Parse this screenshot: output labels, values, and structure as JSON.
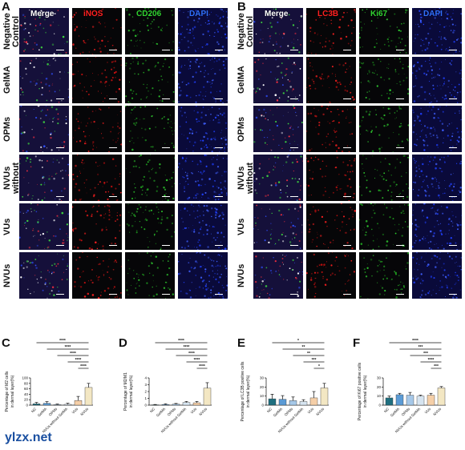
{
  "figure": {
    "panel_letters": [
      "A",
      "B",
      "C",
      "D",
      "E",
      "F"
    ],
    "panel_A": {
      "columns": [
        "Merge",
        "iNOS",
        "CD206",
        "DAPI"
      ],
      "column_colors": [
        "#ffffff",
        "#ff2020",
        "#30d030",
        "#3070ff"
      ],
      "rows": [
        "Negative Control",
        "GelMA",
        "OPMs",
        "NVUs without GelMA",
        "VUs",
        "NVUs"
      ]
    },
    "panel_B": {
      "columns": [
        "Merge",
        "LC3B",
        "Ki67",
        "DAPI"
      ],
      "column_colors": [
        "#ffffff",
        "#ff2020",
        "#30d030",
        "#3070ff"
      ],
      "rows": [
        "Negative Control",
        "GelMA",
        "OPMs",
        "NVUs without GelMA",
        "VUs",
        "NVUs"
      ]
    },
    "watermark": "ylzx.net"
  },
  "chart_data": [
    {
      "panel": "C",
      "type": "bar",
      "ylabel": "Percentage of M2 cells in dermal layer(%)",
      "categories": [
        "NC",
        "GelMA",
        "OPMs",
        "NVUs without GelMA",
        "VUs",
        "NVUs"
      ],
      "values": [
        5,
        7,
        2,
        3,
        17,
        65
      ],
      "errors": [
        5,
        6,
        2,
        4,
        15,
        15
      ],
      "ylim": [
        0,
        100
      ],
      "yticks": [
        0,
        20,
        40,
        60,
        80,
        100
      ],
      "colors": [
        "#1f6f7f",
        "#5b9bd5",
        "#a6c8e8",
        "#d6e4f0",
        "#f5cfa8",
        "#f3e7c3"
      ],
      "significance": [
        "****",
        "****",
        "****",
        "****",
        "****"
      ]
    },
    {
      "panel": "D",
      "type": "bar",
      "ylabel": "Percentage of M2/M1 in dermal layer(%)",
      "categories": [
        "NC",
        "GelMA",
        "OPMs",
        "NVUs without GelMA",
        "VUs",
        "NVUs"
      ],
      "values": [
        0.05,
        0.1,
        0.15,
        0.4,
        0.35,
        2.5
      ],
      "errors": [
        0.05,
        0.1,
        0.1,
        0.15,
        0.2,
        0.8
      ],
      "ylim": [
        0,
        4
      ],
      "yticks": [
        0,
        1,
        2,
        3,
        4
      ],
      "colors": [
        "#1f6f7f",
        "#5b9bd5",
        "#a6c8e8",
        "#d6e4f0",
        "#f5cfa8",
        "#f3e7c3"
      ],
      "significance": [
        "****",
        "****",
        "****",
        "****",
        "****"
      ]
    },
    {
      "panel": "E",
      "type": "bar",
      "ylabel": "Percentage of LC3B positive cells in dermal layer(%)",
      "categories": [
        "NC",
        "GelMA",
        "OPMs",
        "NVUs without GelMA",
        "VUs",
        "NVUs"
      ],
      "values": [
        7,
        6.5,
        5,
        4,
        8,
        19
      ],
      "errors": [
        5,
        4,
        4,
        2,
        7,
        5
      ],
      "ylim": [
        0,
        30
      ],
      "yticks": [
        0,
        10,
        20,
        30
      ],
      "colors": [
        "#1f6f7f",
        "#5b9bd5",
        "#a6c8e8",
        "#d6e4f0",
        "#f5cfa8",
        "#f3e7c3"
      ],
      "significance": [
        "*",
        "**",
        "**",
        "***",
        "*"
      ]
    },
    {
      "panel": "F",
      "type": "bar",
      "ylabel": "Percentage of Ki67 positive cells in dermal layer(%)",
      "categories": [
        "NC",
        "GelMA",
        "OPMs",
        "NVUs without GelMA",
        "VUs",
        "NVUs"
      ],
      "values": [
        8,
        11.5,
        11,
        10,
        11,
        19
      ],
      "errors": [
        2,
        1.5,
        3,
        1,
        2,
        1.5
      ],
      "ylim": [
        0,
        30
      ],
      "yticks": [
        0,
        10,
        20,
        30
      ],
      "colors": [
        "#1f6f7f",
        "#5b9bd5",
        "#a6c8e8",
        "#d6e4f0",
        "#f5cfa8",
        "#f3e7c3"
      ],
      "significance": [
        "****",
        "***",
        "***",
        "****",
        "***"
      ]
    }
  ]
}
